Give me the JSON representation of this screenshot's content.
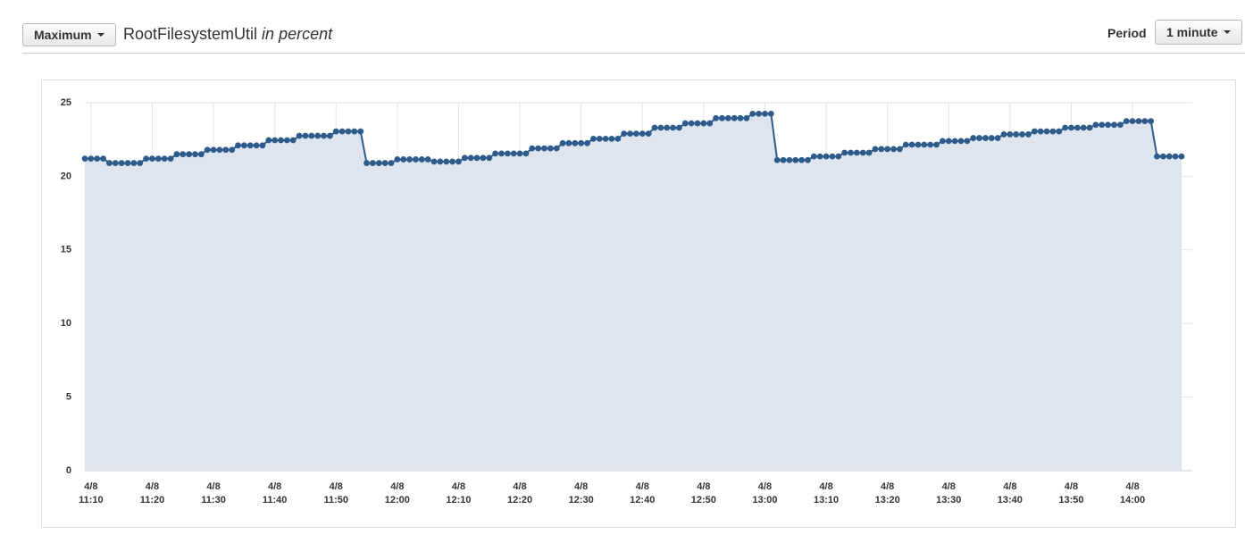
{
  "toolbar": {
    "statistic": "Maximum",
    "metric": "RootFilesystemUtil",
    "unit": "in percent",
    "period_label": "Period",
    "period": "1 minute"
  },
  "chart_data": {
    "type": "line",
    "area": true,
    "fill_color": "#dfe5ee",
    "grid": true,
    "x": [
      "4/8 11:09",
      "4/8 11:10",
      "4/8 11:11",
      "4/8 11:12",
      "4/8 11:13",
      "4/8 11:14",
      "4/8 11:15",
      "4/8 11:16",
      "4/8 11:17",
      "4/8 11:18",
      "4/8 11:19",
      "4/8 11:20",
      "4/8 11:21",
      "4/8 11:22",
      "4/8 11:23",
      "4/8 11:24",
      "4/8 11:25",
      "4/8 11:26",
      "4/8 11:27",
      "4/8 11:28",
      "4/8 11:29",
      "4/8 11:30",
      "4/8 11:31",
      "4/8 11:32",
      "4/8 11:33",
      "4/8 11:34",
      "4/8 11:35",
      "4/8 11:36",
      "4/8 11:37",
      "4/8 11:38",
      "4/8 11:39",
      "4/8 11:40",
      "4/8 11:41",
      "4/8 11:42",
      "4/8 11:43",
      "4/8 11:44",
      "4/8 11:45",
      "4/8 11:46",
      "4/8 11:47",
      "4/8 11:48",
      "4/8 11:49",
      "4/8 11:50",
      "4/8 11:51",
      "4/8 11:52",
      "4/8 11:53",
      "4/8 11:54",
      "4/8 11:55",
      "4/8 11:56",
      "4/8 11:57",
      "4/8 11:58",
      "4/8 11:59",
      "4/8 12:00",
      "4/8 12:01",
      "4/8 12:02",
      "4/8 12:03",
      "4/8 12:04",
      "4/8 12:05",
      "4/8 12:06",
      "4/8 12:07",
      "4/8 12:08",
      "4/8 12:09",
      "4/8 12:10",
      "4/8 12:11",
      "4/8 12:12",
      "4/8 12:13",
      "4/8 12:14",
      "4/8 12:15",
      "4/8 12:16",
      "4/8 12:17",
      "4/8 12:18",
      "4/8 12:19",
      "4/8 12:20",
      "4/8 12:21",
      "4/8 12:22",
      "4/8 12:23",
      "4/8 12:24",
      "4/8 12:25",
      "4/8 12:26",
      "4/8 12:27",
      "4/8 12:28",
      "4/8 12:29",
      "4/8 12:30",
      "4/8 12:31",
      "4/8 12:32",
      "4/8 12:33",
      "4/8 12:34",
      "4/8 12:35",
      "4/8 12:36",
      "4/8 12:37",
      "4/8 12:38",
      "4/8 12:39",
      "4/8 12:40",
      "4/8 12:41",
      "4/8 12:42",
      "4/8 12:43",
      "4/8 12:44",
      "4/8 12:45",
      "4/8 12:46",
      "4/8 12:47",
      "4/8 12:48",
      "4/8 12:49",
      "4/8 12:50",
      "4/8 12:51",
      "4/8 12:52",
      "4/8 12:53",
      "4/8 12:54",
      "4/8 12:55",
      "4/8 12:56",
      "4/8 12:57",
      "4/8 12:58",
      "4/8 12:59",
      "4/8 13:00",
      "4/8 13:01",
      "4/8 13:02",
      "4/8 13:03",
      "4/8 13:04",
      "4/8 13:05",
      "4/8 13:06",
      "4/8 13:07",
      "4/8 13:08",
      "4/8 13:09",
      "4/8 13:10",
      "4/8 13:11",
      "4/8 13:12",
      "4/8 13:13",
      "4/8 13:14",
      "4/8 13:15",
      "4/8 13:16",
      "4/8 13:17",
      "4/8 13:18",
      "4/8 13:19",
      "4/8 13:20",
      "4/8 13:21",
      "4/8 13:22",
      "4/8 13:23",
      "4/8 13:24",
      "4/8 13:25",
      "4/8 13:26",
      "4/8 13:27",
      "4/8 13:28",
      "4/8 13:29",
      "4/8 13:30",
      "4/8 13:31",
      "4/8 13:32",
      "4/8 13:33",
      "4/8 13:34",
      "4/8 13:35",
      "4/8 13:36",
      "4/8 13:37",
      "4/8 13:38",
      "4/8 13:39",
      "4/8 13:40",
      "4/8 13:41",
      "4/8 13:42",
      "4/8 13:43",
      "4/8 13:44",
      "4/8 13:45",
      "4/8 13:46",
      "4/8 13:47",
      "4/8 13:48",
      "4/8 13:49",
      "4/8 13:50",
      "4/8 13:51",
      "4/8 13:52",
      "4/8 13:53",
      "4/8 13:54",
      "4/8 13:55",
      "4/8 13:56",
      "4/8 13:57",
      "4/8 13:58",
      "4/8 13:59",
      "4/8 14:00",
      "4/8 14:01",
      "4/8 14:02",
      "4/8 14:03",
      "4/8 14:04",
      "4/8 14:05",
      "4/8 14:06",
      "4/8 14:07",
      "4/8 14:08"
    ],
    "series": [
      {
        "color": "#2d5b8c",
        "values": [
          21.2,
          21.2,
          21.2,
          21.2,
          20.9,
          20.9,
          20.9,
          20.9,
          20.9,
          20.9,
          21.2,
          21.2,
          21.2,
          21.2,
          21.2,
          21.5,
          21.5,
          21.5,
          21.5,
          21.5,
          21.8,
          21.8,
          21.8,
          21.8,
          21.8,
          22.1,
          22.1,
          22.1,
          22.1,
          22.1,
          22.45,
          22.45,
          22.45,
          22.45,
          22.45,
          22.75,
          22.75,
          22.75,
          22.75,
          22.75,
          22.75,
          23.05,
          23.05,
          23.05,
          23.05,
          23.05,
          20.9,
          20.9,
          20.9,
          20.9,
          20.9,
          21.15,
          21.15,
          21.15,
          21.15,
          21.15,
          21.15,
          21.0,
          21.0,
          21.0,
          21.0,
          21.0,
          21.25,
          21.25,
          21.25,
          21.25,
          21.25,
          21.55,
          21.55,
          21.55,
          21.55,
          21.55,
          21.55,
          21.9,
          21.9,
          21.9,
          21.9,
          21.9,
          22.25,
          22.25,
          22.25,
          22.25,
          22.25,
          22.55,
          22.55,
          22.55,
          22.55,
          22.55,
          22.9,
          22.9,
          22.9,
          22.9,
          22.9,
          23.3,
          23.3,
          23.3,
          23.3,
          23.3,
          23.6,
          23.6,
          23.6,
          23.6,
          23.6,
          23.95,
          23.95,
          23.95,
          23.95,
          23.95,
          23.95,
          24.25,
          24.25,
          24.25,
          24.25,
          21.1,
          21.1,
          21.1,
          21.1,
          21.1,
          21.1,
          21.35,
          21.35,
          21.35,
          21.35,
          21.35,
          21.6,
          21.6,
          21.6,
          21.6,
          21.6,
          21.85,
          21.85,
          21.85,
          21.85,
          21.85,
          22.15,
          22.15,
          22.15,
          22.15,
          22.15,
          22.15,
          22.4,
          22.4,
          22.4,
          22.4,
          22.4,
          22.6,
          22.6,
          22.6,
          22.6,
          22.6,
          22.85,
          22.85,
          22.85,
          22.85,
          22.85,
          23.05,
          23.05,
          23.05,
          23.05,
          23.05,
          23.3,
          23.3,
          23.3,
          23.3,
          23.3,
          23.5,
          23.5,
          23.5,
          23.5,
          23.5,
          23.75,
          23.75,
          23.75,
          23.75,
          23.75,
          21.35,
          21.35,
          21.35,
          21.35,
          21.35
        ]
      }
    ],
    "ylim": [
      0,
      25
    ],
    "yticks": [
      0,
      5,
      10,
      15,
      20,
      25
    ],
    "xticks": [
      {
        "value": "4/8 11:10",
        "label": "4/8\n11:10"
      },
      {
        "value": "4/8 11:20",
        "label": "4/8\n11:20"
      },
      {
        "value": "4/8 11:30",
        "label": "4/8\n11:30"
      },
      {
        "value": "4/8 11:40",
        "label": "4/8\n11:40"
      },
      {
        "value": "4/8 11:50",
        "label": "4/8\n11:50"
      },
      {
        "value": "4/8 12:00",
        "label": "4/8\n12:00"
      },
      {
        "value": "4/8 12:10",
        "label": "4/8\n12:10"
      },
      {
        "value": "4/8 12:20",
        "label": "4/8\n12:20"
      },
      {
        "value": "4/8 12:30",
        "label": "4/8\n12:30"
      },
      {
        "value": "4/8 12:40",
        "label": "4/8\n12:40"
      },
      {
        "value": "4/8 12:50",
        "label": "4/8\n12:50"
      },
      {
        "value": "4/8 13:00",
        "label": "4/8\n13:00"
      },
      {
        "value": "4/8 13:10",
        "label": "4/8\n13:10"
      },
      {
        "value": "4/8 13:20",
        "label": "4/8\n13:20"
      },
      {
        "value": "4/8 13:30",
        "label": "4/8\n13:30"
      },
      {
        "value": "4/8 13:40",
        "label": "4/8\n13:40"
      },
      {
        "value": "4/8 13:50",
        "label": "4/8\n13:50"
      },
      {
        "value": "4/8 14:00",
        "label": "4/8\n14:00"
      }
    ]
  }
}
